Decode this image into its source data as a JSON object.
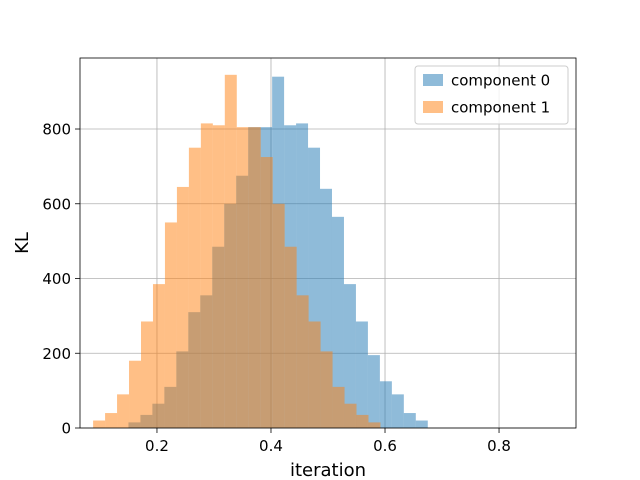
{
  "chart_data": {
    "type": "bar",
    "histogram": true,
    "title": "",
    "xlabel": "iteration",
    "ylabel": "KL",
    "xlim": [
      0.065,
      0.935
    ],
    "ylim": [
      0,
      990
    ],
    "x_ticks": [
      "0.2",
      "0.4",
      "0.6",
      "0.8"
    ],
    "y_ticks": [
      "0",
      "200",
      "400",
      "600",
      "800"
    ],
    "grid": true,
    "legend_position": "top-right",
    "series": [
      {
        "name": "component 0",
        "color": "#1f77b4",
        "alpha": 0.5,
        "bins": [
          [
            0.15,
            0.171,
            15
          ],
          [
            0.171,
            0.192,
            35
          ],
          [
            0.192,
            0.213,
            65
          ],
          [
            0.213,
            0.234,
            110
          ],
          [
            0.234,
            0.255,
            205
          ],
          [
            0.255,
            0.276,
            310
          ],
          [
            0.276,
            0.297,
            355
          ],
          [
            0.297,
            0.318,
            485
          ],
          [
            0.318,
            0.339,
            600
          ],
          [
            0.339,
            0.36,
            675
          ],
          [
            0.36,
            0.381,
            805
          ],
          [
            0.381,
            0.402,
            805
          ],
          [
            0.402,
            0.423,
            940
          ],
          [
            0.423,
            0.444,
            810
          ],
          [
            0.444,
            0.465,
            815
          ],
          [
            0.465,
            0.486,
            750
          ],
          [
            0.486,
            0.507,
            640
          ],
          [
            0.507,
            0.528,
            565
          ],
          [
            0.528,
            0.549,
            385
          ],
          [
            0.549,
            0.57,
            285
          ],
          [
            0.57,
            0.591,
            195
          ],
          [
            0.591,
            0.612,
            125
          ],
          [
            0.612,
            0.633,
            90
          ],
          [
            0.633,
            0.654,
            40
          ],
          [
            0.654,
            0.675,
            20
          ]
        ]
      },
      {
        "name": "component 1",
        "color": "#ff7f0e",
        "alpha": 0.5,
        "bins": [
          [
            0.088,
            0.109,
            20
          ],
          [
            0.109,
            0.13,
            40
          ],
          [
            0.13,
            0.151,
            90
          ],
          [
            0.151,
            0.172,
            180
          ],
          [
            0.172,
            0.193,
            285
          ],
          [
            0.193,
            0.214,
            385
          ],
          [
            0.214,
            0.235,
            550
          ],
          [
            0.235,
            0.256,
            645
          ],
          [
            0.256,
            0.277,
            750
          ],
          [
            0.277,
            0.298,
            815
          ],
          [
            0.298,
            0.319,
            810
          ],
          [
            0.319,
            0.34,
            945
          ],
          [
            0.34,
            0.361,
            805
          ],
          [
            0.361,
            0.382,
            805
          ],
          [
            0.382,
            0.403,
            725
          ],
          [
            0.403,
            0.424,
            600
          ],
          [
            0.424,
            0.445,
            485
          ],
          [
            0.445,
            0.466,
            355
          ],
          [
            0.466,
            0.487,
            285
          ],
          [
            0.487,
            0.508,
            205
          ],
          [
            0.508,
            0.529,
            110
          ],
          [
            0.529,
            0.55,
            65
          ],
          [
            0.55,
            0.571,
            35
          ],
          [
            0.571,
            0.592,
            15
          ]
        ]
      }
    ]
  }
}
